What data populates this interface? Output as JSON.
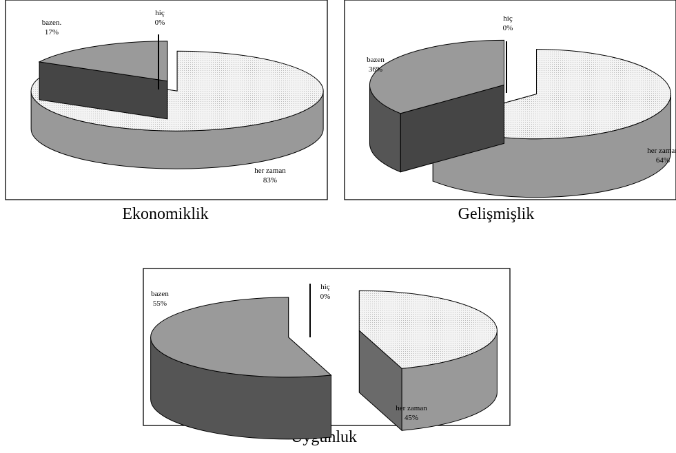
{
  "chart_data": [
    {
      "type": "pie",
      "title": "Ekonomiklik",
      "categories": [
        "her zaman",
        "bazen.",
        "hiç"
      ],
      "values": [
        83,
        17,
        0
      ],
      "value_labels": [
        "83%",
        "17%",
        "0%"
      ],
      "colors": [
        "#ececec",
        "#9a9a9a",
        "#ffffff"
      ]
    },
    {
      "type": "pie",
      "title": "Gelişmişlik",
      "categories": [
        "her zaman",
        "bazen",
        "hiç"
      ],
      "values": [
        64,
        36,
        0
      ],
      "value_labels": [
        "64%",
        "36%",
        "0%"
      ],
      "colors": [
        "#ececec",
        "#9a9a9a",
        "#ffffff"
      ]
    },
    {
      "type": "pie",
      "title": "Uygunluk",
      "categories": [
        "her zaman",
        "bazen",
        "hiç"
      ],
      "values": [
        45,
        55,
        0
      ],
      "value_labels": [
        "45%",
        "55%",
        "0%"
      ],
      "colors": [
        "#ececec",
        "#9a9a9a",
        "#ffffff"
      ]
    }
  ]
}
